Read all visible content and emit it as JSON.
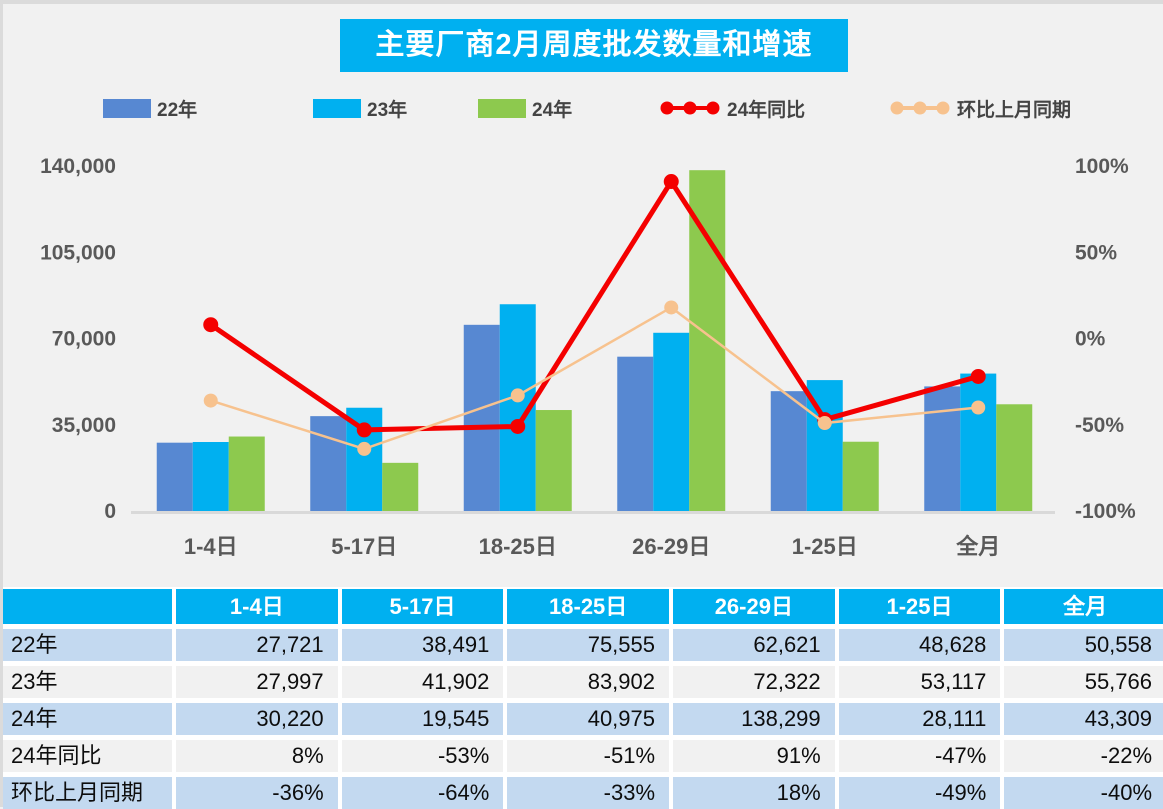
{
  "title": "主要厂商2月周度批发数量和增速",
  "theme": {
    "accent_cyan": "#00b0f0",
    "table_row_blue": "#c3d9f0",
    "table_row_gray": "#f1f1f1",
    "axis_text": "#595959",
    "axis_line": "#d9d9d9",
    "page_background": "#f1f1f1"
  },
  "chart_data": {
    "type": "combo-bar-line",
    "title": "主要厂商2月周度批发数量和增速",
    "categories": [
      "1-4日",
      "5-17日",
      "18-25日",
      "26-29日",
      "1-25日",
      "全月"
    ],
    "bar_series": [
      {
        "name": "22年",
        "color": "#5788d2",
        "values": [
          27721,
          38491,
          75555,
          62621,
          48628,
          50558
        ]
      },
      {
        "name": "23年",
        "color": "#00b0f0",
        "values": [
          27997,
          41902,
          83902,
          72322,
          53117,
          55766
        ]
      },
      {
        "name": "24年",
        "color": "#8dc94e",
        "values": [
          30220,
          19545,
          40975,
          138299,
          28111,
          43309
        ]
      }
    ],
    "line_series": [
      {
        "name": "24年同比",
        "color": "#f40000",
        "axis": "right",
        "unit": "%",
        "values": [
          8,
          -53,
          -51,
          91,
          -47,
          -22
        ]
      },
      {
        "name": "环比上月同期",
        "color": "#f7c28e",
        "axis": "right",
        "unit": "%",
        "values": [
          -36,
          -64,
          -33,
          18,
          -49,
          -40
        ]
      }
    ],
    "left_axis": {
      "min": 0,
      "max": 140000,
      "ticks": [
        "0",
        "35,000",
        "70,000",
        "105,000",
        "140,000"
      ]
    },
    "right_axis": {
      "min": -100,
      "max": 100,
      "ticks": [
        "-100%",
        "-50%",
        "0%",
        "50%",
        "100%"
      ]
    },
    "grid": false,
    "legend_position": "top"
  },
  "table": {
    "header": [
      "",
      "1-4日",
      "5-17日",
      "18-25日",
      "26-29日",
      "1-25日",
      "全月"
    ],
    "rows": [
      [
        "22年",
        "27,721",
        "38,491",
        "75,555",
        "62,621",
        "48,628",
        "50,558"
      ],
      [
        "23年",
        "27,997",
        "41,902",
        "83,902",
        "72,322",
        "53,117",
        "55,766"
      ],
      [
        "24年",
        "30,220",
        "19,545",
        "40,975",
        "138,299",
        "28,111",
        "43,309"
      ],
      [
        "24年同比",
        "8%",
        "-53%",
        "-51%",
        "91%",
        "-47%",
        "-22%"
      ],
      [
        "环比上月同期",
        "-36%",
        "-64%",
        "-33%",
        "18%",
        "-49%",
        "-40%"
      ]
    ]
  }
}
